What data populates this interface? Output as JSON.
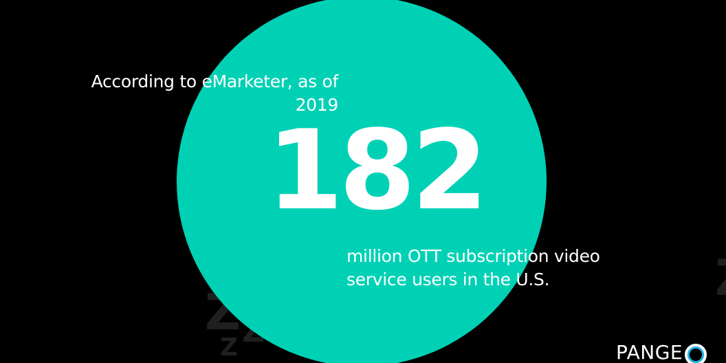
{
  "intro_text": "According to eMarketer, as of 2019",
  "big_number": "182",
  "caption_text": "million OTT subscription video service users in the U.S.",
  "brand": {
    "name_text": "PANGE",
    "ring_icon": "o-ring-icon"
  },
  "colors": {
    "background": "#000000",
    "circle": "#00d1b5",
    "text": "#ffffff",
    "brand_ring": "#1fb3e6"
  }
}
